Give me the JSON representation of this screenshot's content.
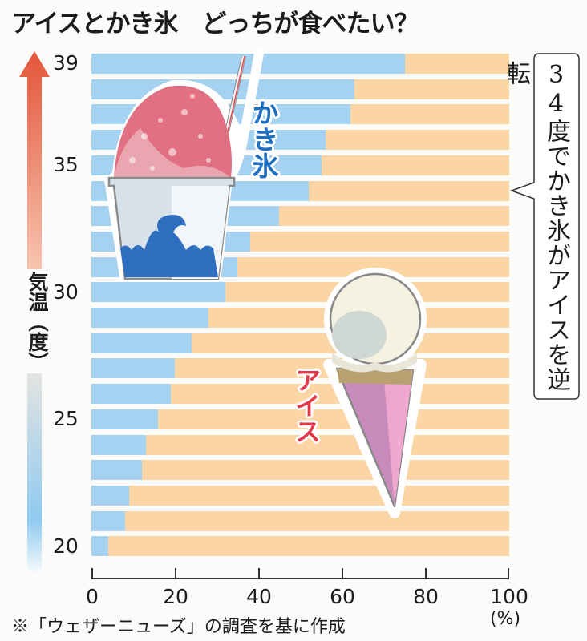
{
  "title": "アイスとかき氷　どっちが食べたい？",
  "y_axis": {
    "label": "気温（度）",
    "ticks": [
      {
        "label": "39",
        "temp": 39
      },
      {
        "label": "35",
        "temp": 35
      },
      {
        "label": "30",
        "temp": 30
      },
      {
        "label": "25",
        "temp": 25
      },
      {
        "label": "20",
        "temp": 20
      }
    ]
  },
  "x_axis": {
    "ticks": [
      "0",
      "20",
      "40",
      "60",
      "80",
      "100"
    ],
    "unit": "(%)"
  },
  "callout": {
    "text": "34度でかき氷がアイスを逆転"
  },
  "labels": {
    "kakigori": "かき氷",
    "ice": "アイス"
  },
  "source": "※「ウェザーニューズ」の調査を基に作成",
  "colors": {
    "kakigori": "#a4d2f0",
    "ice": "#fbd5a3",
    "kakigori_label": "#1e6fc0",
    "ice_label": "#e0394a",
    "arrow_top": "#e4553a",
    "arrow_bottom": "#8fcaf0"
  },
  "chart_data": {
    "type": "bar",
    "orientation": "horizontal",
    "stacked": true,
    "normalized": true,
    "title": "アイスとかき氷　どっちが食べたい？",
    "xlabel": "(%)",
    "ylabel": "気温（度）",
    "xlim": [
      0,
      100
    ],
    "categories": [
      "39",
      "38",
      "37",
      "36",
      "35",
      "34",
      "33",
      "32",
      "31",
      "30",
      "29",
      "28",
      "27",
      "26",
      "25",
      "24",
      "23",
      "22",
      "21",
      "20"
    ],
    "series": [
      {
        "name": "かき氷",
        "color": "#a4d2f0",
        "values": [
          75,
          63,
          62,
          56,
          55,
          52,
          45,
          38,
          35,
          32,
          28,
          24,
          20,
          19,
          16,
          13,
          12,
          9,
          8,
          4
        ]
      },
      {
        "name": "アイス",
        "color": "#fbd5a3",
        "values": [
          25,
          37,
          38,
          44,
          45,
          48,
          55,
          62,
          65,
          68,
          72,
          76,
          80,
          81,
          84,
          87,
          88,
          91,
          92,
          96
        ]
      }
    ],
    "annotations": [
      "34度でかき氷がアイスを逆転"
    ],
    "x_ticks": [
      0,
      20,
      40,
      60,
      80,
      100
    ],
    "y_ticks": [
      39,
      35,
      30,
      25,
      20
    ],
    "grid": false,
    "legend": "inline labels (かき氷 / アイス)",
    "source": "※「ウェザーニューズ」の調査を基に作成"
  }
}
